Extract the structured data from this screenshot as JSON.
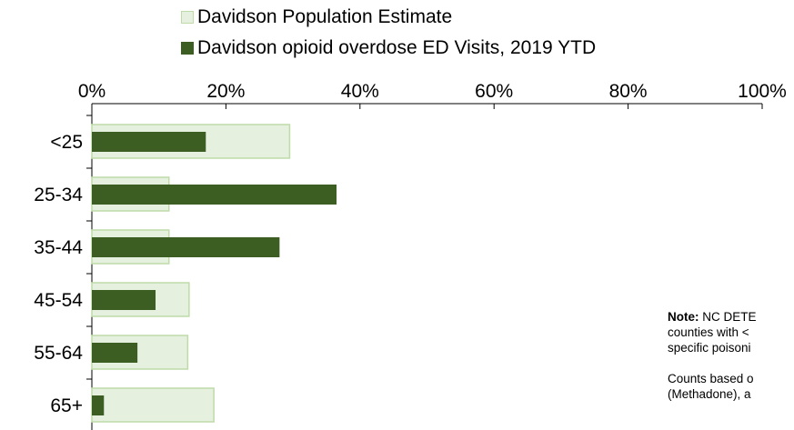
{
  "chart_data": {
    "type": "bar",
    "orientation": "horizontal",
    "categories": [
      "<25",
      "25-34",
      "35-44",
      "45-54",
      "55-64",
      "65+"
    ],
    "series": [
      {
        "name": "Davidson Population Estimate",
        "values": [
          29.5,
          11.5,
          11.5,
          14.5,
          14.3,
          18.2
        ],
        "color": "#e5f0df",
        "border": "#bfdba8"
      },
      {
        "name": "Davidson opioid overdose ED Visits, 2019 YTD",
        "values": [
          17,
          36.5,
          28,
          9.5,
          6.8,
          1.8
        ],
        "color": "#3d5e23"
      }
    ],
    "xlim": [
      0,
      100
    ],
    "x_ticks": [
      "0%",
      "20%",
      "40%",
      "60%",
      "80%",
      "100%"
    ],
    "x_tick_values": [
      0,
      20,
      40,
      60,
      80,
      100
    ],
    "x_axis_position": "top",
    "legend_position": "top",
    "grid": false
  },
  "note": {
    "label": "Note:",
    "line1_rest": "NC DETE",
    "line2": "counties with <",
    "line3": "specific poisoni",
    "line4": "Counts based o",
    "line5": "(Methadone), a"
  }
}
